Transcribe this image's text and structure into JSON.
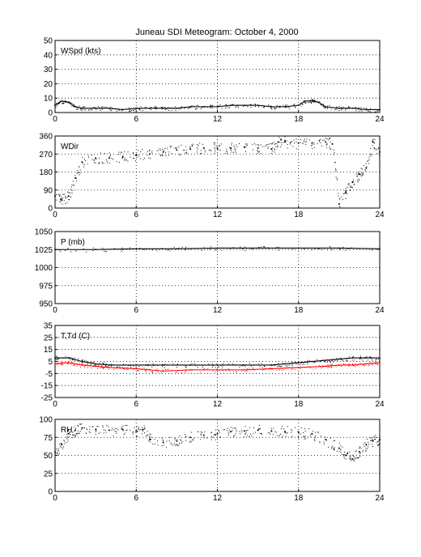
{
  "title": "Juneau SDI Meteogram:    October  4, 2000",
  "chart_data": [
    {
      "type": "line",
      "label": "WSpd (kts)",
      "xlim": [
        0,
        24
      ],
      "ylim": [
        0,
        50
      ],
      "xticks": [
        0,
        6,
        12,
        18,
        24
      ],
      "yticks": [
        0,
        10,
        20,
        30,
        40,
        50
      ],
      "grid": true,
      "series": [
        {
          "color": "#000000",
          "x": [
            0,
            0.5,
            1,
            1.5,
            2,
            3,
            4,
            5,
            6,
            7,
            8,
            9,
            10,
            11,
            12,
            13,
            14,
            15,
            16,
            17,
            18,
            18.5,
            19,
            19.5,
            20,
            21,
            22,
            23,
            24
          ],
          "y": [
            5,
            8,
            7,
            4,
            3,
            3,
            3,
            2,
            3,
            3,
            3,
            3,
            4,
            4,
            4,
            5,
            5,
            5,
            4,
            4,
            5,
            8,
            8,
            7,
            4,
            3,
            3,
            2,
            2
          ]
        }
      ]
    },
    {
      "type": "scatter",
      "label": "WDir",
      "xlim": [
        0,
        24
      ],
      "ylim": [
        0,
        360
      ],
      "xticks": [
        0,
        6,
        12,
        18,
        24
      ],
      "yticks": [
        0,
        90,
        180,
        270,
        360
      ],
      "grid": true,
      "series": [
        {
          "color": "#000000",
          "x": [
            0,
            0.5,
            1,
            1.5,
            2,
            3,
            4,
            5,
            6,
            7,
            8,
            9,
            10,
            11,
            12,
            13,
            14,
            15,
            16,
            16.5,
            17,
            18,
            19,
            20,
            20.5,
            21,
            21.5,
            22,
            22.5,
            23,
            23.5,
            24
          ],
          "y": [
            60,
            40,
            60,
            150,
            230,
            250,
            250,
            255,
            265,
            270,
            280,
            290,
            295,
            300,
            300,
            300,
            305,
            300,
            295,
            330,
            330,
            325,
            325,
            330,
            320,
            20,
            80,
            130,
            170,
            200,
            330,
            280
          ]
        }
      ]
    },
    {
      "type": "line",
      "label": "P (mb)",
      "xlim": [
        0,
        24
      ],
      "ylim": [
        950,
        1050
      ],
      "xticks": [
        0,
        6,
        12,
        18,
        24
      ],
      "yticks": [
        950,
        975,
        1000,
        1025,
        1050
      ],
      "grid": true,
      "series": [
        {
          "color": "#000000",
          "x": [
            0,
            3,
            6,
            9,
            12,
            15,
            18,
            21,
            24
          ],
          "y": [
            1025,
            1025,
            1026,
            1026,
            1027,
            1027,
            1027,
            1027,
            1026
          ]
        }
      ]
    },
    {
      "type": "line",
      "label": "T,Td (C)",
      "xlim": [
        0,
        24
      ],
      "ylim": [
        -25,
        35
      ],
      "xticks": [
        0,
        6,
        12,
        18,
        24
      ],
      "yticks": [
        -25,
        -15,
        -5,
        5,
        15,
        25,
        35
      ],
      "grid": true,
      "series": [
        {
          "color": "#000000",
          "x": [
            0,
            1,
            2,
            3,
            4,
            6,
            8,
            10,
            12,
            14,
            16,
            17,
            18,
            19,
            20,
            21,
            22,
            23,
            24
          ],
          "y": [
            8,
            8,
            5,
            3,
            2,
            2,
            2,
            2,
            2,
            2,
            2,
            3,
            4,
            5,
            6,
            7,
            8,
            8,
            8
          ]
        },
        {
          "color": "#ff0000",
          "x": [
            0,
            1,
            2,
            3,
            4,
            6,
            7,
            8,
            10,
            12,
            14,
            16,
            18,
            20,
            21,
            22,
            23,
            24
          ],
          "y": [
            3,
            4,
            2,
            1,
            0,
            -1,
            -2,
            -3,
            -2,
            -2,
            -2,
            -1,
            0,
            1,
            2,
            2,
            3,
            4
          ]
        }
      ]
    },
    {
      "type": "scatter",
      "label": "RH",
      "xlim": [
        0,
        24
      ],
      "ylim": [
        0,
        100
      ],
      "xticks": [
        0,
        6,
        12,
        18,
        24
      ],
      "yticks": [
        0,
        25,
        50,
        75,
        100
      ],
      "grid": true,
      "series": [
        {
          "color": "#000000",
          "x": [
            0,
            0.5,
            1,
            1.5,
            2,
            3,
            4,
            5,
            6,
            6.5,
            7,
            8,
            9,
            10,
            11,
            12,
            13,
            14,
            15,
            16,
            17,
            18,
            19,
            20,
            21,
            21.5,
            22,
            22.5,
            23,
            23.5,
            24
          ],
          "y": [
            55,
            65,
            80,
            85,
            88,
            86,
            85,
            86,
            84,
            86,
            72,
            68,
            70,
            75,
            78,
            80,
            83,
            84,
            85,
            84,
            83,
            82,
            80,
            72,
            60,
            50,
            45,
            55,
            65,
            70,
            72
          ]
        }
      ]
    }
  ]
}
